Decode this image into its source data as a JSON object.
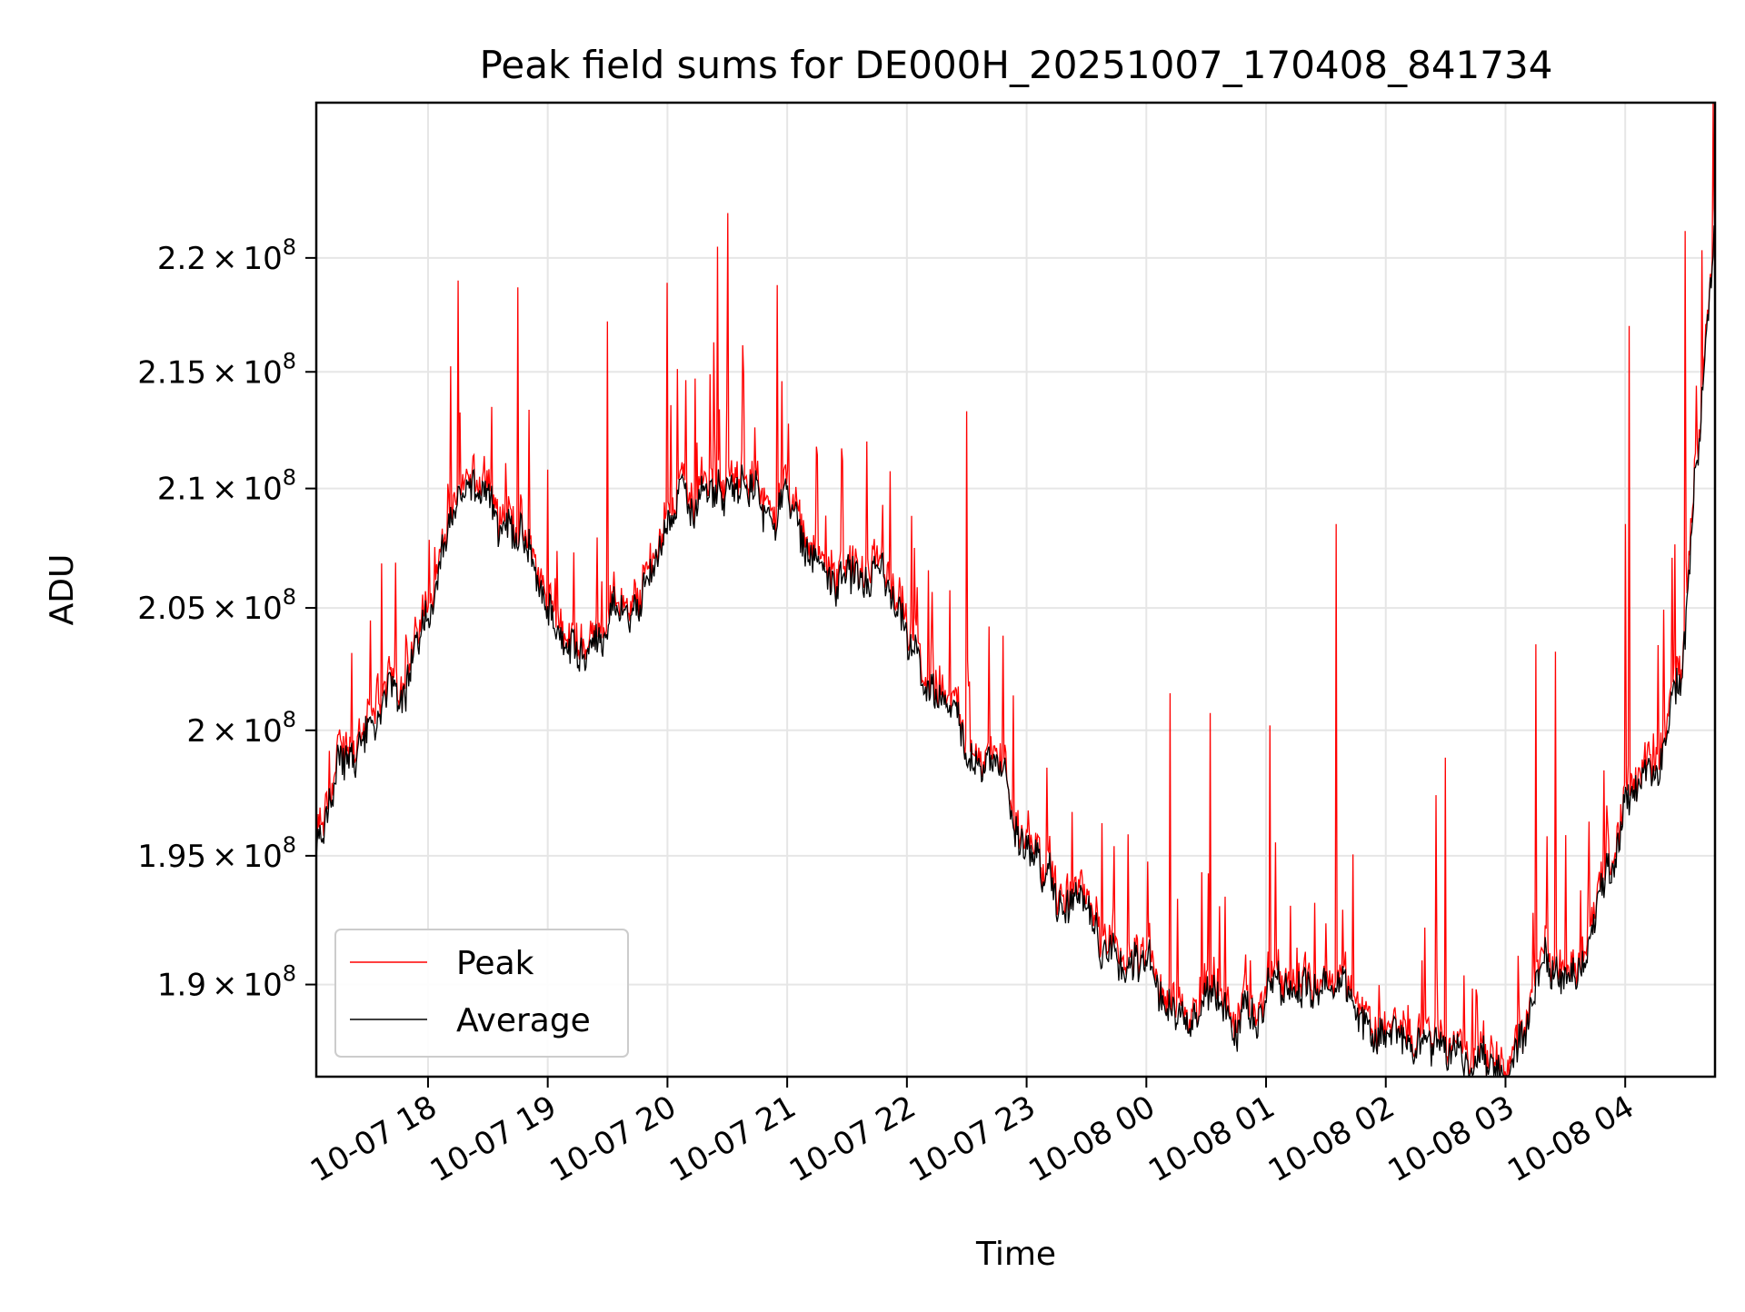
{
  "chart_data": {
    "type": "line",
    "title": "Peak field sums for DE000H_20251007_170408_841734",
    "xlabel": "Time",
    "ylabel": "ADU",
    "x_range": [
      "10-07 17:04",
      "10-08 04:45"
    ],
    "y_range": [
      186500000,
      227000000
    ],
    "y_scale": "log",
    "grid": true,
    "legend_position": "lower-left",
    "x_ticks": [
      "10-07 18",
      "10-07 19",
      "10-07 20",
      "10-07 21",
      "10-07 22",
      "10-07 23",
      "10-08 00",
      "10-08 01",
      "10-08 02",
      "10-08 03",
      "10-08 04"
    ],
    "y_ticks": [
      {
        "value": 190000000,
        "mant": "1.9",
        "exp": "8"
      },
      {
        "value": 195000000,
        "mant": "1.95",
        "exp": "8"
      },
      {
        "value": 200000000,
        "mant": "2",
        "exp": "8"
      },
      {
        "value": 205000000,
        "mant": "2.05",
        "exp": "8"
      },
      {
        "value": 210000000,
        "mant": "2.1",
        "exp": "8"
      },
      {
        "value": 215000000,
        "mant": "2.15",
        "exp": "8"
      },
      {
        "value": 220000000,
        "mant": "2.2",
        "exp": "8"
      }
    ],
    "series": [
      {
        "name": "Peak",
        "color": "#ff0000"
      },
      {
        "name": "Average",
        "color": "#000000"
      }
    ],
    "average_trend": {
      "x": [
        "10-07 17:04",
        "10-07 17:15",
        "10-07 17:30",
        "10-07 17:45",
        "10-07 18:00",
        "10-07 18:15",
        "10-07 18:30",
        "10-07 18:45",
        "10-07 19:00",
        "10-07 19:15",
        "10-07 19:30",
        "10-07 19:45",
        "10-07 20:00",
        "10-07 20:30",
        "10-07 21:00",
        "10-07 21:15",
        "10-07 21:30",
        "10-07 21:45",
        "10-07 22:00",
        "10-07 22:15",
        "10-07 22:30",
        "10-07 22:45",
        "10-07 23:00",
        "10-07 23:15",
        "10-07 23:30",
        "10-07 23:45",
        "10-08 00:00",
        "10-08 00:15",
        "10-08 00:30",
        "10-08 00:45",
        "10-08 01:00",
        "10-08 01:15",
        "10-08 01:30",
        "10-08 01:45",
        "10-08 02:00",
        "10-08 02:15",
        "10-08 02:30",
        "10-08 02:45",
        "10-08 03:00",
        "10-08 03:15",
        "10-08 03:30",
        "10-08 03:45",
        "10-08 04:00",
        "10-08 04:15",
        "10-08 04:30",
        "10-08 04:45"
      ],
      "y": [
        195000000,
        198500000,
        199500000,
        201500000,
        204500000,
        209000000,
        210000000,
        208500000,
        205000000,
        203000000,
        204500000,
        205000000,
        209000000,
        210000000,
        209500000,
        206500000,
        205500000,
        205500000,
        204000000,
        200500000,
        199500000,
        198500000,
        195000000,
        193500000,
        192500000,
        191000000,
        190500000,
        189000000,
        189500000,
        188000000,
        189500000,
        190000000,
        190500000,
        189000000,
        188500000,
        188000000,
        187500000,
        187500000,
        186500000,
        189500000,
        191000000,
        192500000,
        196500000,
        198000000,
        204500000,
        222000000
      ]
    },
    "peak_spikes": [
      {
        "x": "10-07 18:15",
        "y": 219000000
      },
      {
        "x": "10-07 18:45",
        "y": 218700000
      },
      {
        "x": "10-07 19:30",
        "y": 217200000
      },
      {
        "x": "10-07 20:00",
        "y": 218900000
      },
      {
        "x": "10-07 20:25",
        "y": 220500000
      },
      {
        "x": "10-07 20:30",
        "y": 222000000
      },
      {
        "x": "10-07 20:55",
        "y": 218800000
      },
      {
        "x": "10-07 21:40",
        "y": 212000000
      },
      {
        "x": "10-07 22:30",
        "y": 213300000
      },
      {
        "x": "10-07 23:10",
        "y": 198500000
      },
      {
        "x": "10-08 00:12",
        "y": 201500000
      },
      {
        "x": "10-08 00:32",
        "y": 200700000
      },
      {
        "x": "10-08 01:02",
        "y": 200200000
      },
      {
        "x": "10-08 01:35",
        "y": 208500000
      },
      {
        "x": "10-08 02:25",
        "y": 197400000
      },
      {
        "x": "10-08 02:30",
        "y": 198900000
      },
      {
        "x": "10-08 03:15",
        "y": 203500000
      },
      {
        "x": "10-08 03:25",
        "y": 203200000
      },
      {
        "x": "10-08 04:00",
        "y": 208500000
      },
      {
        "x": "10-08 04:02",
        "y": 217000000
      },
      {
        "x": "10-08 04:30",
        "y": 221200000
      },
      {
        "x": "10-08 04:44",
        "y": 227000000
      }
    ]
  }
}
